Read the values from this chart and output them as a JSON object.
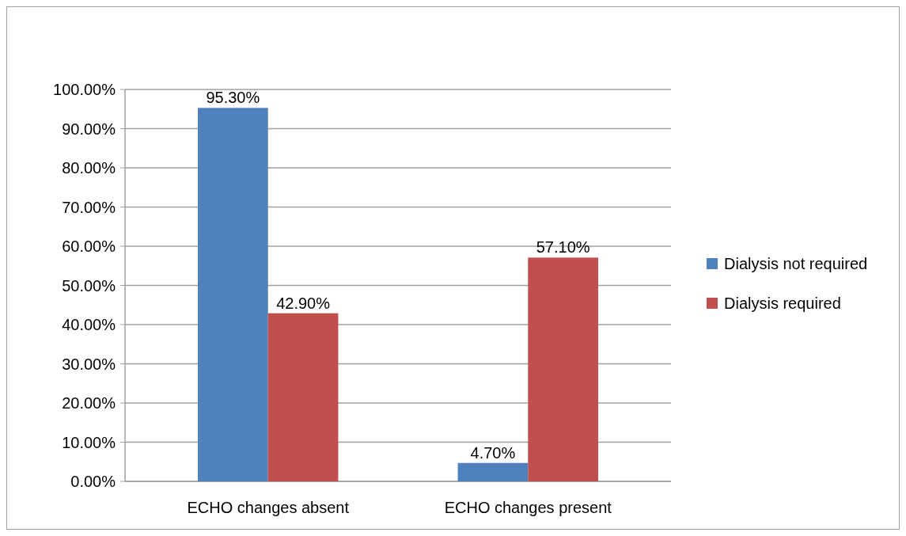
{
  "chart_data": {
    "type": "bar",
    "categories": [
      "ECHO changes absent",
      "ECHO changes present"
    ],
    "series": [
      {
        "name": "Dialysis not required",
        "color": "#4f81bd",
        "values": [
          95.3,
          4.7
        ],
        "value_labels": [
          "95.30%",
          "4.70%"
        ]
      },
      {
        "name": "Dialysis required",
        "color": "#c0504d",
        "values": [
          42.9,
          57.1
        ],
        "value_labels": [
          "42.90%",
          "57.10%"
        ]
      }
    ],
    "ylim": [
      0,
      100
    ],
    "yticks": [
      {
        "value": 0,
        "label": "0.00%"
      },
      {
        "value": 10,
        "label": "10.00%"
      },
      {
        "value": 20,
        "label": "20.00%"
      },
      {
        "value": 30,
        "label": "30.00%"
      },
      {
        "value": 40,
        "label": "40.00%"
      },
      {
        "value": 50,
        "label": "50.00%"
      },
      {
        "value": 60,
        "label": "60.00%"
      },
      {
        "value": 70,
        "label": "70.00%"
      },
      {
        "value": 80,
        "label": "80.00%"
      },
      {
        "value": 90,
        "label": "90.00%"
      },
      {
        "value": 100,
        "label": "100.00%"
      }
    ],
    "grid": "y",
    "legend": "right"
  }
}
